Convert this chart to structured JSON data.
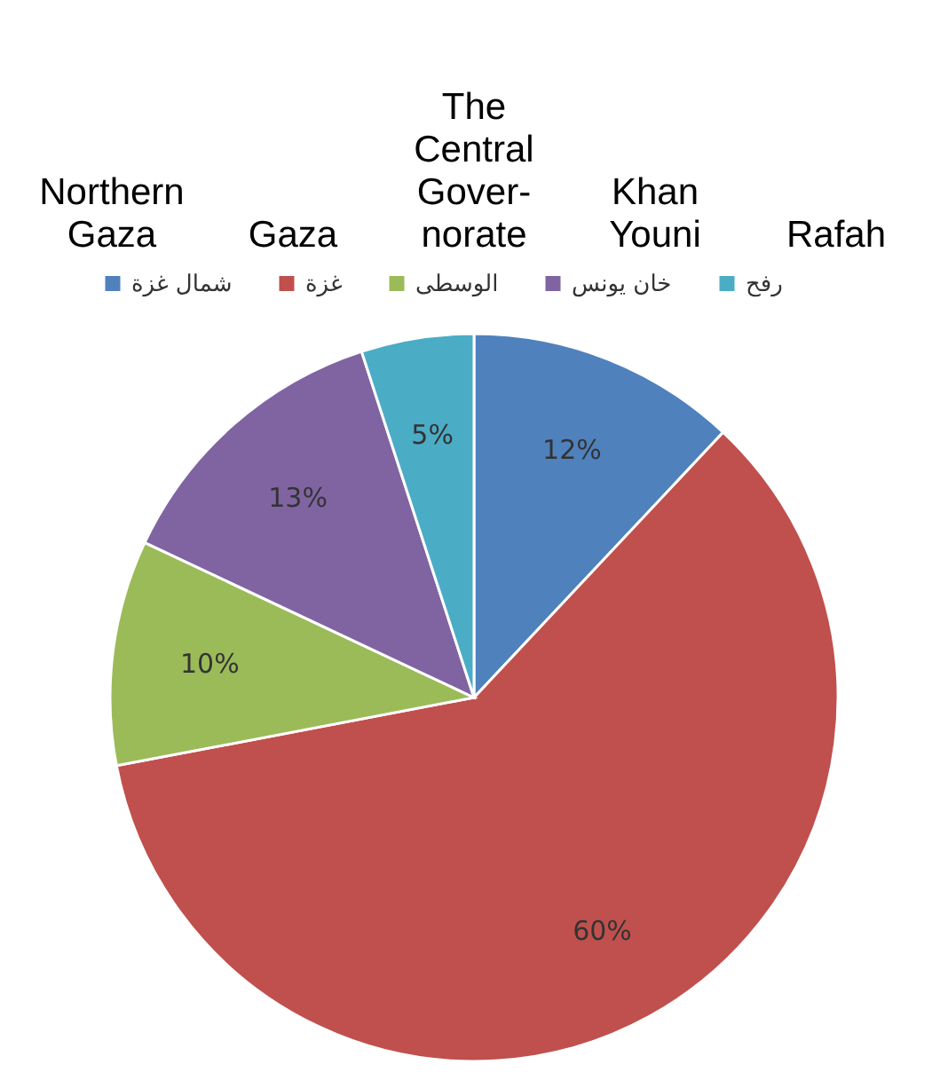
{
  "chart_data": {
    "type": "pie",
    "categories": [
      "شمال غزة",
      "غزة",
      "الوسطى",
      "خان يونس",
      "رفح"
    ],
    "values": [
      12,
      60,
      10,
      13,
      5
    ],
    "value_labels": [
      "12%",
      "60%",
      "10%",
      "13%",
      "5%"
    ],
    "colors": [
      "#4f81bd",
      "#c0504d",
      "#9bbb59",
      "#8064a2",
      "#4bacc6"
    ],
    "legend": "top",
    "annotations": [
      "Northern Gaza",
      "Gaza",
      "The Central Gover-norate",
      "Khan Youni",
      "Rafah"
    ]
  }
}
